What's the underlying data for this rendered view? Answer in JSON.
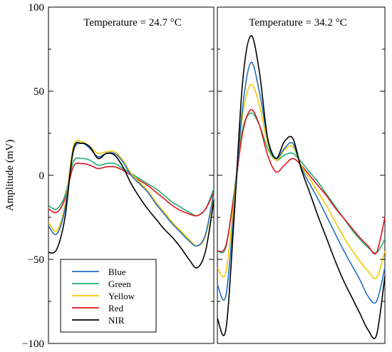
{
  "chart_data": {
    "type": "line",
    "ylabel": "Amplitude (mV)",
    "ylim": [
      -100,
      100
    ],
    "yticks": [
      -100,
      -50,
      0,
      50,
      100
    ],
    "legend": {
      "placement": "bottom-left of left panel",
      "entries": [
        "Blue",
        "Green",
        "Yellow",
        "Red",
        "NIR"
      ]
    },
    "colors": {
      "Blue": "#1f6fbf",
      "Green": "#20b070",
      "Yellow": "#f5c800",
      "Red": "#e0141e",
      "NIR": "#000000"
    },
    "panels": [
      {
        "title": "Temperature = 24.7 °C",
        "x": [
          0,
          0.05,
          0.1,
          0.15,
          0.2,
          0.25,
          0.3,
          0.35,
          0.4,
          0.45,
          0.5,
          0.55,
          0.6,
          0.65,
          0.7,
          0.75,
          0.8,
          0.85,
          0.9,
          0.95,
          1.0
        ],
        "series": [
          {
            "name": "Blue",
            "values": [
              -30,
              -35,
              -20,
              14,
              19,
              16,
              11,
              13,
              13,
              8,
              0,
              -5,
              -10,
              -17,
              -23,
              -29,
              -34,
              -39,
              -42,
              -35,
              -10
            ]
          },
          {
            "name": "Green",
            "values": [
              -18,
              -20,
              -12,
              8,
              10,
              9,
              6,
              7,
              7,
              4,
              1,
              -2,
              -5,
              -8,
              -12,
              -16,
              -19,
              -22,
              -24,
              -20,
              -8
            ]
          },
          {
            "name": "Yellow",
            "values": [
              -28,
              -33,
              -18,
              17,
              20,
              17,
              13,
              14,
              14,
              9,
              1,
              -4,
              -9,
              -16,
              -22,
              -28,
              -33,
              -38,
              -42,
              -36,
              -12
            ]
          },
          {
            "name": "Red",
            "values": [
              -20,
              -22,
              -14,
              5,
              7,
              6,
              4,
              5,
              5,
              3,
              0,
              -3,
              -6,
              -10,
              -14,
              -18,
              -21,
              -23,
              -24,
              -20,
              -10
            ]
          },
          {
            "name": "NIR",
            "values": [
              -46,
              -44,
              -25,
              15,
              19,
              17,
              10,
              13,
              12,
              5,
              -5,
              -13,
              -20,
              -26,
              -32,
              -37,
              -43,
              -50,
              -55,
              -45,
              -15
            ]
          }
        ]
      },
      {
        "title": "Temperature = 34.2 °C",
        "x": [
          0,
          0.05,
          0.1,
          0.15,
          0.2,
          0.25,
          0.3,
          0.35,
          0.4,
          0.45,
          0.5,
          0.55,
          0.6,
          0.65,
          0.7,
          0.75,
          0.8,
          0.85,
          0.9,
          0.95,
          1.0
        ],
        "series": [
          {
            "name": "Blue",
            "values": [
              -65,
              -72,
              -20,
              40,
              67,
              50,
              22,
              10,
              16,
              19,
              5,
              -5,
              -14,
              -24,
              -34,
              -44,
              -53,
              -62,
              -72,
              -75,
              -55
            ]
          },
          {
            "name": "Green",
            "values": [
              -45,
              -43,
              -10,
              27,
              37,
              30,
              16,
              9,
              12,
              13,
              8,
              2,
              -4,
              -11,
              -18,
              -25,
              -32,
              -38,
              -43,
              -46,
              -38
            ]
          },
          {
            "name": "Yellow",
            "values": [
              -55,
              -58,
              -15,
              35,
              54,
              42,
              19,
              9,
              15,
              17,
              6,
              -2,
              -10,
              -18,
              -27,
              -36,
              -44,
              -51,
              -57,
              -61,
              -45
            ]
          },
          {
            "name": "Red",
            "values": [
              -45,
              -42,
              -12,
              25,
              39,
              30,
              12,
              2,
              6,
              10,
              6,
              0,
              -6,
              -12,
              -19,
              -25,
              -31,
              -37,
              -42,
              -46,
              -25
            ]
          },
          {
            "name": "NIR",
            "values": [
              -85,
              -92,
              -25,
              55,
              83,
              62,
              22,
              10,
              20,
              22,
              4,
              -10,
              -24,
              -37,
              -50,
              -62,
              -72,
              -82,
              -92,
              -95,
              -60
            ]
          }
        ]
      }
    ]
  }
}
